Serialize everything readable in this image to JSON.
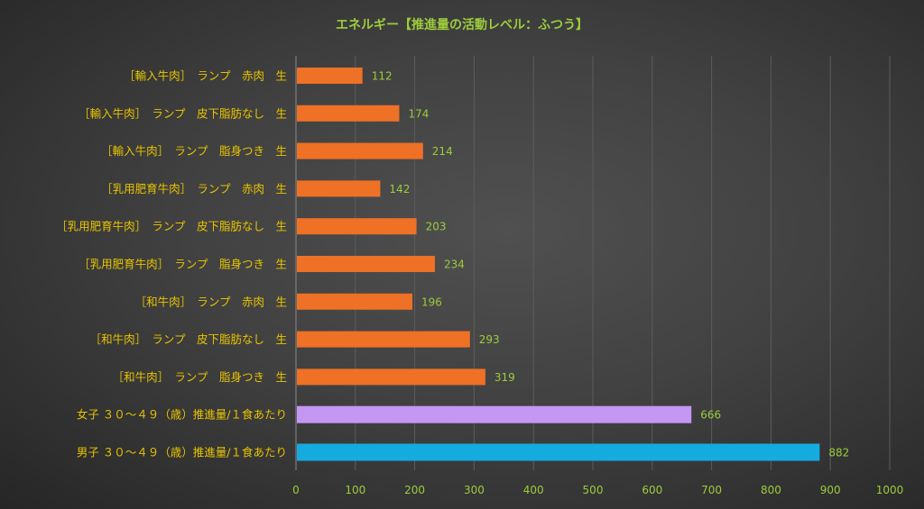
{
  "chart_data": {
    "type": "bar",
    "orientation": "horizontal",
    "title": "エネルギー【推進量の活動レベル：ふつう】",
    "categories": [
      "［輸入牛肉］　ランプ　赤肉　生",
      "［輸入牛肉］　ランプ　皮下脂肪なし　生",
      "［輸入牛肉］　ランプ　脂身つき　生",
      "［乳用肥育牛肉］　ランプ　赤肉　生",
      "［乳用肥育牛肉］　ランプ　皮下脂肪なし　生",
      "［乳用肥育牛肉］　ランプ　脂身つき　生",
      "［和牛肉］　ランプ　赤肉　生",
      "［和牛肉］　ランプ　皮下脂肪なし　生",
      "［和牛肉］　ランプ　脂身つき　生",
      "女子 ３０～４９（歳）推進量/１食あたり",
      "男子 ３０～４９（歳）推進量/１食あたり"
    ],
    "values": [
      112,
      174,
      214,
      142,
      203,
      234,
      196,
      293,
      319,
      666,
      882
    ],
    "bar_colors": [
      "#ee7125",
      "#ee7125",
      "#ee7125",
      "#ee7125",
      "#ee7125",
      "#ee7125",
      "#ee7125",
      "#ee7125",
      "#ee7125",
      "#c497f2",
      "#14acdf"
    ],
    "xlim": [
      0,
      1000
    ],
    "xticks": [
      0,
      100,
      200,
      300,
      400,
      500,
      600,
      700,
      800,
      900,
      1000
    ],
    "grid": true,
    "legend": "none",
    "colors": {
      "title": "#9ccc3c",
      "category_label": "#e8c400",
      "tick_label": "#9ccc3c",
      "data_label": "#9ccc3c",
      "grid": "#5c5c5c"
    }
  }
}
